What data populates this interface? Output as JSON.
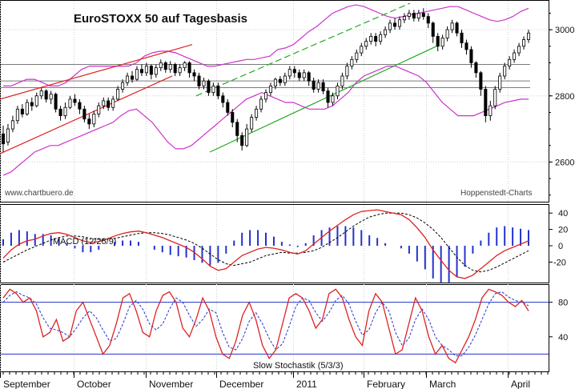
{
  "chart_data": [
    {
      "type": "candlestick",
      "title": "EuroSTOXX 50 auf Tagesbasis",
      "source_left": "www.chartbuero.de",
      "source_right": "Hoppenstedt-Charts",
      "ylim": [
        2480,
        3085
      ],
      "yticks": [
        2600,
        2800,
        3000
      ],
      "month_labels": [
        "September",
        "October",
        "November",
        "December",
        "2011",
        "February",
        "March",
        "April"
      ],
      "candles": [
        [
          2685,
          2655,
          2710,
          2630
        ],
        [
          2660,
          2700,
          2715,
          2650
        ],
        [
          2700,
          2725,
          2740,
          2690
        ],
        [
          2725,
          2760,
          2770,
          2715
        ],
        [
          2760,
          2745,
          2775,
          2735
        ],
        [
          2745,
          2780,
          2790,
          2740
        ],
        [
          2780,
          2770,
          2795,
          2755
        ],
        [
          2770,
          2800,
          2810,
          2765
        ],
        [
          2800,
          2815,
          2825,
          2790
        ],
        [
          2815,
          2790,
          2820,
          2780
        ],
        [
          2790,
          2805,
          2815,
          2775
        ],
        [
          2805,
          2760,
          2810,
          2750
        ],
        [
          2760,
          2740,
          2770,
          2725
        ],
        [
          2740,
          2765,
          2780,
          2730
        ],
        [
          2765,
          2790,
          2800,
          2760
        ],
        [
          2790,
          2780,
          2805,
          2770
        ],
        [
          2780,
          2760,
          2790,
          2745
        ],
        [
          2760,
          2730,
          2770,
          2720
        ],
        [
          2730,
          2715,
          2745,
          2700
        ],
        [
          2715,
          2745,
          2755,
          2705
        ],
        [
          2745,
          2770,
          2780,
          2735
        ],
        [
          2770,
          2785,
          2795,
          2760
        ],
        [
          2785,
          2765,
          2795,
          2755
        ],
        [
          2765,
          2790,
          2800,
          2755
        ],
        [
          2790,
          2820,
          2830,
          2785
        ],
        [
          2820,
          2840,
          2850,
          2810
        ],
        [
          2840,
          2860,
          2870,
          2830
        ],
        [
          2860,
          2850,
          2875,
          2840
        ],
        [
          2850,
          2880,
          2890,
          2845
        ],
        [
          2880,
          2870,
          2895,
          2860
        ],
        [
          2870,
          2890,
          2900,
          2860
        ],
        [
          2890,
          2865,
          2895,
          2850
        ],
        [
          2865,
          2885,
          2895,
          2855
        ],
        [
          2885,
          2900,
          2910,
          2875
        ],
        [
          2900,
          2880,
          2905,
          2870
        ],
        [
          2880,
          2895,
          2905,
          2870
        ],
        [
          2895,
          2870,
          2900,
          2860
        ],
        [
          2870,
          2885,
          2895,
          2860
        ],
        [
          2885,
          2900,
          2905,
          2875
        ],
        [
          2900,
          2870,
          2905,
          2855
        ],
        [
          2870,
          2860,
          2880,
          2845
        ],
        [
          2860,
          2830,
          2870,
          2820
        ],
        [
          2830,
          2845,
          2855,
          2820
        ],
        [
          2845,
          2810,
          2850,
          2800
        ],
        [
          2810,
          2830,
          2840,
          2800
        ],
        [
          2830,
          2800,
          2840,
          2790
        ],
        [
          2800,
          2780,
          2810,
          2765
        ],
        [
          2780,
          2750,
          2790,
          2740
        ],
        [
          2750,
          2720,
          2760,
          2705
        ],
        [
          2720,
          2680,
          2730,
          2660
        ],
        [
          2680,
          2650,
          2690,
          2635
        ],
        [
          2650,
          2700,
          2715,
          2645
        ],
        [
          2700,
          2735,
          2745,
          2690
        ],
        [
          2735,
          2760,
          2770,
          2725
        ],
        [
          2760,
          2790,
          2800,
          2750
        ],
        [
          2790,
          2810,
          2820,
          2780
        ],
        [
          2810,
          2830,
          2840,
          2800
        ],
        [
          2830,
          2850,
          2855,
          2820
        ],
        [
          2850,
          2840,
          2860,
          2830
        ],
        [
          2840,
          2860,
          2870,
          2830
        ],
        [
          2860,
          2880,
          2890,
          2850
        ],
        [
          2880,
          2870,
          2890,
          2855
        ],
        [
          2870,
          2855,
          2880,
          2845
        ],
        [
          2855,
          2870,
          2880,
          2845
        ],
        [
          2870,
          2845,
          2875,
          2830
        ],
        [
          2845,
          2820,
          2855,
          2810
        ],
        [
          2820,
          2840,
          2850,
          2810
        ],
        [
          2840,
          2815,
          2850,
          2805
        ],
        [
          2815,
          2780,
          2825,
          2765
        ],
        [
          2780,
          2800,
          2810,
          2770
        ],
        [
          2800,
          2830,
          2840,
          2790
        ],
        [
          2830,
          2860,
          2870,
          2820
        ],
        [
          2860,
          2890,
          2900,
          2850
        ],
        [
          2890,
          2910,
          2920,
          2880
        ],
        [
          2910,
          2930,
          2940,
          2900
        ],
        [
          2930,
          2950,
          2960,
          2920
        ],
        [
          2950,
          2965,
          2975,
          2940
        ],
        [
          2965,
          2980,
          2990,
          2955
        ],
        [
          2980,
          2965,
          2990,
          2950
        ],
        [
          2965,
          2985,
          2995,
          2955
        ],
        [
          2985,
          3000,
          3010,
          2975
        ],
        [
          3000,
          3020,
          3030,
          2990
        ],
        [
          3020,
          3010,
          3035,
          3000
        ],
        [
          3010,
          3030,
          3040,
          3000
        ],
        [
          3030,
          3040,
          3050,
          3020
        ],
        [
          3040,
          3050,
          3060,
          3030
        ],
        [
          3050,
          3035,
          3060,
          3025
        ],
        [
          3035,
          3050,
          3060,
          3025
        ],
        [
          3050,
          3040,
          3065,
          3030
        ],
        [
          3040,
          3020,
          3050,
          3005
        ],
        [
          3020,
          2980,
          3025,
          2960
        ],
        [
          2980,
          2950,
          2990,
          2935
        ],
        [
          2950,
          2975,
          2985,
          2940
        ],
        [
          2975,
          3000,
          3010,
          2965
        ],
        [
          3000,
          3020,
          3030,
          2990
        ],
        [
          3020,
          2990,
          3025,
          2980
        ],
        [
          2990,
          2960,
          3000,
          2945
        ],
        [
          2960,
          2940,
          2970,
          2925
        ],
        [
          2940,
          2900,
          2950,
          2885
        ],
        [
          2900,
          2870,
          2905,
          2855
        ],
        [
          2870,
          2820,
          2875,
          2800
        ],
        [
          2820,
          2740,
          2830,
          2720
        ],
        [
          2740,
          2770,
          2785,
          2725
        ],
        [
          2770,
          2820,
          2830,
          2760
        ],
        [
          2820,
          2860,
          2870,
          2810
        ],
        [
          2860,
          2890,
          2900,
          2850
        ],
        [
          2890,
          2910,
          2920,
          2880
        ],
        [
          2910,
          2930,
          2940,
          2900
        ],
        [
          2930,
          2950,
          2960,
          2920
        ],
        [
          2950,
          2970,
          2980,
          2940
        ],
        [
          2970,
          2990,
          3000,
          2960
        ]
      ],
      "bollinger_upper": [
        2830,
        2830,
        2840,
        2850,
        2850,
        2840,
        2830,
        2830,
        2840,
        2860,
        2880,
        2890,
        2890,
        2890,
        2890,
        2890,
        2890,
        2900,
        2920,
        2930,
        2935,
        2935,
        2930,
        2920,
        2910,
        2900,
        2890,
        2890,
        2895,
        2900,
        2905,
        2910,
        2910,
        2915,
        2920,
        2940,
        2945,
        2955,
        2975,
        2995,
        3010,
        3030,
        3050,
        3060,
        3070,
        3075,
        3070,
        3060,
        3050,
        3040,
        3035,
        3040,
        3045,
        3050,
        3055,
        3060,
        3065,
        3070,
        3070,
        3060,
        3050,
        3040,
        3030,
        3025,
        3030,
        3040,
        3055,
        3065
      ],
      "bollinger_lower": [
        2560,
        2570,
        2590,
        2610,
        2630,
        2640,
        2650,
        2650,
        2660,
        2670,
        2680,
        2690,
        2700,
        2710,
        2720,
        2740,
        2755,
        2760,
        2740,
        2720,
        2690,
        2660,
        2640,
        2640,
        2650,
        2670,
        2690,
        2710,
        2730,
        2750,
        2770,
        2790,
        2800,
        2810,
        2800,
        2790,
        2780,
        2780,
        2770,
        2760,
        2760,
        2760,
        2770,
        2790,
        2810,
        2840,
        2860,
        2870,
        2880,
        2890,
        2890,
        2880,
        2870,
        2860,
        2840,
        2810,
        2780,
        2760,
        2740,
        2740,
        2740,
        2750,
        2760,
        2770,
        2780,
        2785,
        2790,
        2790
      ],
      "macd_line": [
        -15,
        -5,
        2,
        6,
        8,
        12,
        15,
        16,
        14,
        10,
        6,
        4,
        5,
        8,
        12,
        15,
        17,
        18,
        16,
        13,
        10,
        6,
        2,
        -2,
        -8,
        -16,
        -25,
        -30,
        -28,
        -20,
        -12,
        -8,
        -4,
        -2,
        -3,
        -5,
        -8,
        -10,
        -6,
        2,
        10,
        18,
        25,
        32,
        38,
        42,
        43,
        44,
        42,
        40,
        38,
        32,
        22,
        10,
        -5,
        -18,
        -30,
        -38,
        -40,
        -36,
        -28,
        -20,
        -12,
        -6,
        -2,
        2,
        6
      ],
      "signal_line": [
        -20,
        -15,
        -10,
        -5,
        -1,
        3,
        7,
        10,
        12,
        12,
        11,
        9,
        8,
        8,
        9,
        11,
        13,
        15,
        16,
        16,
        15,
        13,
        10,
        7,
        3,
        -3,
        -10,
        -17,
        -22,
        -24,
        -22,
        -20,
        -16,
        -12,
        -10,
        -8,
        -9,
        -9,
        -8,
        -6,
        -2,
        4,
        10,
        17,
        24,
        30,
        35,
        38,
        40,
        40,
        40,
        38,
        34,
        28,
        20,
        10,
        -2,
        -14,
        -24,
        -30,
        -32,
        -30,
        -26,
        -21,
        -16,
        -11,
        -6
      ],
      "macd_ylim": [
        -45,
        50
      ],
      "macd_yticks": [
        -20,
        0,
        20,
        40
      ],
      "macd_label": "MACD (12/26/9)",
      "stoch_k": [
        85,
        95,
        90,
        80,
        85,
        70,
        40,
        45,
        60,
        35,
        40,
        70,
        80,
        60,
        40,
        20,
        30,
        55,
        85,
        90,
        70,
        45,
        40,
        70,
        88,
        92,
        80,
        50,
        40,
        60,
        85,
        70,
        40,
        20,
        15,
        35,
        65,
        80,
        60,
        30,
        15,
        25,
        55,
        85,
        90,
        85,
        70,
        50,
        60,
        90,
        95,
        85,
        60,
        40,
        30,
        70,
        90,
        80,
        50,
        20,
        25,
        55,
        85,
        70,
        40,
        20,
        30,
        15,
        10,
        25,
        40,
        60,
        85,
        95,
        92,
        88,
        80,
        75,
        82,
        70
      ],
      "stoch_d": [
        80,
        88,
        92,
        88,
        85,
        78,
        62,
        50,
        48,
        45,
        40,
        50,
        62,
        70,
        62,
        48,
        35,
        38,
        55,
        75,
        82,
        72,
        55,
        48,
        55,
        72,
        85,
        80,
        65,
        52,
        60,
        72,
        68,
        45,
        28,
        25,
        38,
        58,
        68,
        55,
        38,
        25,
        32,
        52,
        75,
        85,
        82,
        68,
        58,
        68,
        82,
        88,
        78,
        58,
        42,
        48,
        68,
        80,
        70,
        45,
        30,
        38,
        60,
        72,
        60,
        40,
        30,
        25,
        18,
        18,
        28,
        42,
        60,
        78,
        90,
        92,
        86,
        82,
        80,
        76
      ],
      "stoch_ylim": [
        0,
        100
      ],
      "stoch_yticks": [
        40,
        80
      ],
      "stoch_label": "Slow Stochastik (5/3/3)"
    }
  ]
}
